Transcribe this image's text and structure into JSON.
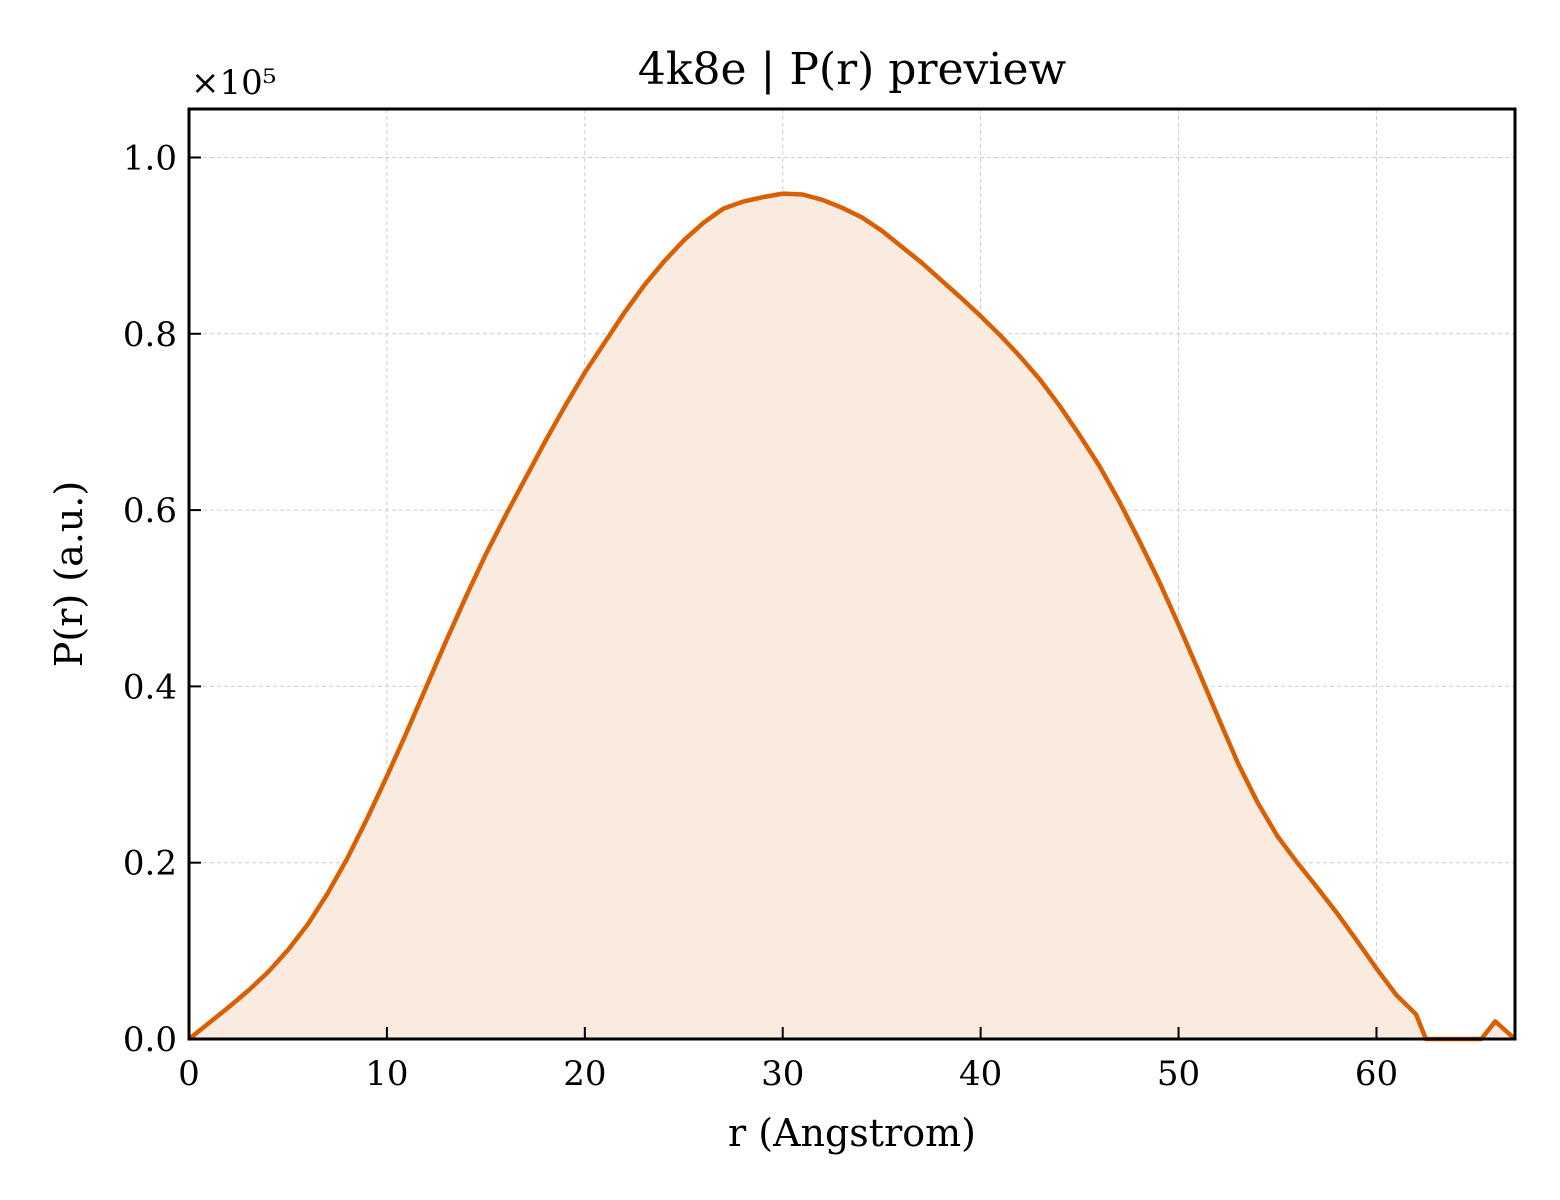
{
  "chart_data": {
    "type": "area",
    "title": "4k8e | P(r) preview",
    "xlabel": "r (Angstrom)",
    "ylabel": "P(r) (a.u.)",
    "y_multiplier_label": "×10⁵",
    "y_multiplier": 100000,
    "xlim": [
      0,
      67
    ],
    "ylim": [
      0,
      1.055
    ],
    "x_ticks": [
      0,
      10,
      20,
      30,
      40,
      50,
      60
    ],
    "x_tick_labels": [
      "0",
      "10",
      "20",
      "30",
      "40",
      "50",
      "60"
    ],
    "y_ticks": [
      0.0,
      0.2,
      0.4,
      0.6,
      0.8,
      1.0
    ],
    "y_tick_labels": [
      "0.0",
      "0.2",
      "0.4",
      "0.6",
      "0.8",
      "1.0"
    ],
    "grid": true,
    "line_color": "#d95f02",
    "fill_color": "#f9ebe0",
    "series": [
      {
        "x": [
          0,
          1,
          2,
          3,
          4,
          5,
          6,
          7,
          8,
          9,
          10,
          11,
          12,
          13,
          14,
          15,
          16,
          17,
          18,
          19,
          20,
          21,
          22,
          23,
          24,
          25,
          26,
          27,
          28,
          29,
          30,
          31,
          32,
          33,
          34,
          35,
          36,
          37,
          38,
          39,
          40,
          41,
          42,
          43,
          44,
          45,
          46,
          47,
          48,
          49,
          50,
          51,
          52,
          53,
          54,
          55,
          56,
          57,
          58,
          59,
          60,
          61,
          62,
          62.5,
          65.3,
          66,
          67
        ],
        "y": [
          0.0,
          0.018,
          0.036,
          0.055,
          0.076,
          0.101,
          0.13,
          0.165,
          0.205,
          0.25,
          0.298,
          0.348,
          0.4,
          0.452,
          0.502,
          0.55,
          0.594,
          0.636,
          0.678,
          0.718,
          0.756,
          0.79,
          0.824,
          0.855,
          0.882,
          0.906,
          0.926,
          0.942,
          0.95,
          0.955,
          0.959,
          0.958,
          0.952,
          0.943,
          0.932,
          0.917,
          0.899,
          0.881,
          0.861,
          0.841,
          0.82,
          0.798,
          0.774,
          0.748,
          0.718,
          0.685,
          0.65,
          0.61,
          0.566,
          0.52,
          0.47,
          0.418,
          0.365,
          0.313,
          0.268,
          0.23,
          0.2,
          0.172,
          0.143,
          0.112,
          0.08,
          0.05,
          0.028,
          0.0,
          0.0,
          0.02,
          0.0
        ]
      }
    ]
  }
}
